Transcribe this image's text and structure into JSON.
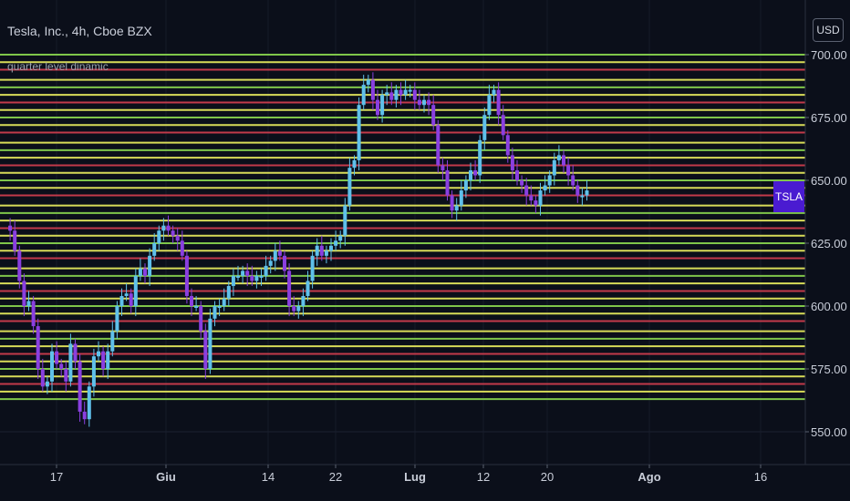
{
  "header": {
    "title": "Tesla, Inc., 4h, Cboe BZX",
    "indicator": "quarter level dinamic"
  },
  "toolbar": {
    "currency_label": "USD"
  },
  "ticker_badge": "TSLA",
  "colors": {
    "background": "#0b0f1a",
    "level_red": "#c23a4a",
    "level_yellow": "#d8dc58",
    "level_green": "#7fc64a",
    "candle_up": "#5fc0ea",
    "candle_down": "#8a3fe0",
    "axis_text": "#c9ced9",
    "badge": "#4a1bd1"
  },
  "chart_data": {
    "type": "candlestick",
    "title": "Tesla, Inc., 4h, Cboe BZX",
    "ylim": [
      545,
      705
    ],
    "y_ticks": [
      "550.00",
      "575.00",
      "600.00",
      "625.00",
      "650.00",
      "675.00",
      "700.00"
    ],
    "x_ticks": [
      "17",
      "Giu",
      "14",
      "22",
      "Lug",
      "12",
      "20",
      "Ago",
      "16"
    ],
    "quarter_levels": [
      {
        "price": 563,
        "color": "green"
      },
      {
        "price": 566,
        "color": "yellow"
      },
      {
        "price": 569,
        "color": "red"
      },
      {
        "price": 572,
        "color": "yellow"
      },
      {
        "price": 575,
        "color": "green"
      },
      {
        "price": 578,
        "color": "yellow"
      },
      {
        "price": 581,
        "color": "red"
      },
      {
        "price": 584,
        "color": "yellow"
      },
      {
        "price": 587,
        "color": "green"
      },
      {
        "price": 590,
        "color": "yellow"
      },
      {
        "price": 594,
        "color": "red"
      },
      {
        "price": 597,
        "color": "yellow"
      },
      {
        "price": 600,
        "color": "green"
      },
      {
        "price": 603,
        "color": "yellow"
      },
      {
        "price": 606,
        "color": "red"
      },
      {
        "price": 609,
        "color": "yellow"
      },
      {
        "price": 612,
        "color": "green"
      },
      {
        "price": 615,
        "color": "yellow"
      },
      {
        "price": 619,
        "color": "red"
      },
      {
        "price": 622,
        "color": "yellow"
      },
      {
        "price": 625,
        "color": "green"
      },
      {
        "price": 628,
        "color": "yellow"
      },
      {
        "price": 631,
        "color": "red"
      },
      {
        "price": 634,
        "color": "yellow"
      },
      {
        "price": 637,
        "color": "green"
      },
      {
        "price": 640,
        "color": "yellow"
      },
      {
        "price": 644,
        "color": "red"
      },
      {
        "price": 647,
        "color": "yellow"
      },
      {
        "price": 650,
        "color": "green"
      },
      {
        "price": 653,
        "color": "yellow"
      },
      {
        "price": 656,
        "color": "red"
      },
      {
        "price": 659,
        "color": "yellow"
      },
      {
        "price": 662,
        "color": "green"
      },
      {
        "price": 665,
        "color": "yellow"
      },
      {
        "price": 669,
        "color": "red"
      },
      {
        "price": 672,
        "color": "yellow"
      },
      {
        "price": 675,
        "color": "green"
      },
      {
        "price": 678,
        "color": "yellow"
      },
      {
        "price": 681,
        "color": "red"
      },
      {
        "price": 684,
        "color": "yellow"
      },
      {
        "price": 687,
        "color": "green"
      },
      {
        "price": 690,
        "color": "yellow"
      },
      {
        "price": 694,
        "color": "red"
      },
      {
        "price": 697,
        "color": "yellow"
      },
      {
        "price": 700,
        "color": "green"
      }
    ],
    "close_path": [
      632,
      630,
      622,
      610,
      600,
      602,
      592,
      575,
      568,
      570,
      582,
      577,
      575,
      570,
      585,
      578,
      558,
      555,
      568,
      580,
      582,
      575,
      582,
      590,
      600,
      604,
      605,
      600,
      612,
      615,
      612,
      620,
      625,
      630,
      632,
      630,
      628,
      626,
      620,
      604,
      600,
      600,
      590,
      575,
      595,
      600,
      600,
      603,
      608,
      612,
      612,
      614,
      612,
      610,
      612,
      612,
      616,
      618,
      622,
      620,
      614,
      600,
      598,
      600,
      604,
      610,
      620,
      624,
      620,
      622,
      624,
      626,
      628,
      640,
      655,
      658,
      680,
      688,
      690,
      682,
      676,
      684,
      685,
      682,
      686,
      684,
      686,
      686,
      682,
      680,
      682,
      680,
      672,
      656,
      654,
      644,
      638,
      640,
      646,
      650,
      654,
      652,
      666,
      676,
      684,
      686,
      676,
      668,
      660,
      654,
      650,
      648,
      644,
      642,
      640,
      646,
      648,
      652,
      658,
      660,
      656,
      652,
      648,
      644,
      644,
      646
    ]
  }
}
